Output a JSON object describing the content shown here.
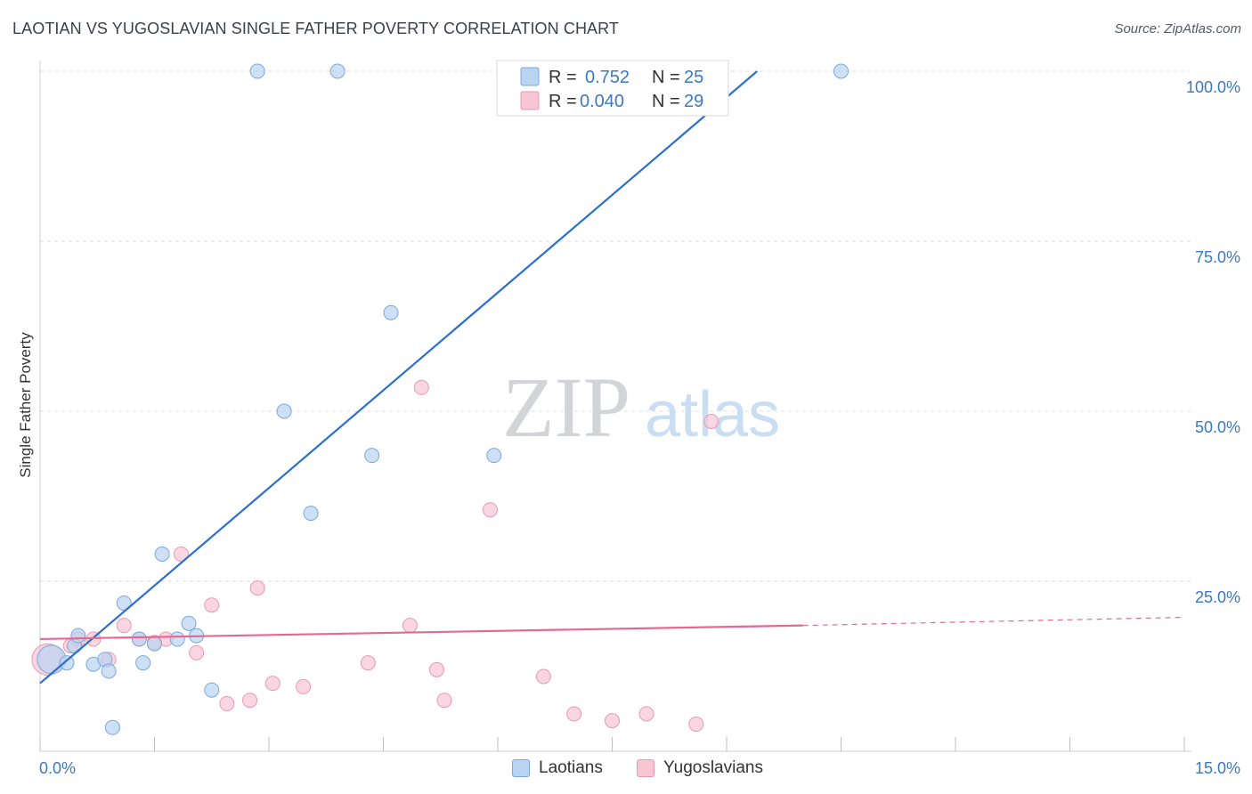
{
  "title": "LAOTIAN VS YUGOSLAVIAN SINGLE FATHER POVERTY CORRELATION CHART",
  "source": "Source: ZipAtlas.com",
  "watermark": {
    "zip": "ZIP",
    "atlas": "atlas"
  },
  "colors": {
    "blue_fill": "#b9d3f2",
    "blue_stroke": "#7aa8dc",
    "blue_line": "#2c6fce",
    "pink_fill": "#f8c5d5",
    "pink_stroke": "#e998b2",
    "pink_line": "#e3698f",
    "axis_text": "#3b78c4",
    "grid": "#dddddd"
  },
  "legend": {
    "series": [
      {
        "r_label": "R =",
        "r_value": "0.752",
        "n_label": "N =",
        "n_value": "25"
      },
      {
        "r_label": "R =",
        "r_value": "0.040",
        "n_label": "N =",
        "n_value": "29"
      }
    ]
  },
  "bottom_legend": {
    "laotians": "Laotians",
    "yugoslavians": "Yugoslavians"
  },
  "chart_data": {
    "type": "scatter",
    "title": "LAOTIAN VS YUGOSLAVIAN SINGLE FATHER POVERTY CORRELATION CHART",
    "xlabel": "",
    "ylabel": "Single Father Poverty",
    "xlim": [
      0,
      15
    ],
    "ylim": [
      0,
      100
    ],
    "x_tick_labels": [
      {
        "value": 0,
        "label": "0.0%"
      },
      {
        "value": 15,
        "label": "15.0%"
      }
    ],
    "y_tick_labels": [
      {
        "value": 100,
        "label": "100.0%"
      },
      {
        "value": 75,
        "label": "75.0%"
      },
      {
        "value": 50,
        "label": "50.0%"
      },
      {
        "value": 25,
        "label": "25.0%"
      }
    ],
    "series": [
      {
        "name": "Laotians",
        "color": "#b9d3f2",
        "points": [
          [
            0.15,
            13.5,
            20
          ],
          [
            0.35,
            13.0,
            10
          ],
          [
            0.45,
            15.5,
            10
          ],
          [
            0.5,
            17.0,
            10
          ],
          [
            0.7,
            12.8,
            10
          ],
          [
            0.85,
            13.5,
            10
          ],
          [
            0.9,
            11.8,
            10
          ],
          [
            0.95,
            3.5,
            10
          ],
          [
            1.1,
            21.8,
            10
          ],
          [
            1.3,
            16.5,
            10
          ],
          [
            1.35,
            13.0,
            10
          ],
          [
            1.5,
            15.8,
            10
          ],
          [
            1.6,
            29.0,
            10
          ],
          [
            1.8,
            16.5,
            10
          ],
          [
            1.95,
            18.8,
            10
          ],
          [
            2.05,
            17.0,
            10
          ],
          [
            2.25,
            9.0,
            10
          ],
          [
            2.85,
            100.0,
            10
          ],
          [
            3.2,
            50.0,
            10
          ],
          [
            3.55,
            35.0,
            10
          ],
          [
            3.9,
            100.0,
            10
          ],
          [
            4.35,
            43.5,
            10
          ],
          [
            4.6,
            64.5,
            10
          ],
          [
            5.95,
            43.5,
            10
          ],
          [
            10.5,
            100.0,
            10
          ]
        ]
      },
      {
        "name": "Yugoslavians",
        "color": "#f8c5d5",
        "points": [
          [
            0.1,
            13.5,
            22
          ],
          [
            0.4,
            15.5,
            10
          ],
          [
            0.5,
            16.5,
            10
          ],
          [
            0.7,
            16.5,
            10
          ],
          [
            0.9,
            13.5,
            10
          ],
          [
            1.1,
            18.5,
            10
          ],
          [
            1.3,
            16.5,
            10
          ],
          [
            1.5,
            16.0,
            10
          ],
          [
            1.65,
            16.5,
            10
          ],
          [
            1.85,
            29.0,
            10
          ],
          [
            2.05,
            14.5,
            10
          ],
          [
            2.25,
            21.5,
            10
          ],
          [
            2.45,
            7.0,
            10
          ],
          [
            2.75,
            7.5,
            10
          ],
          [
            2.85,
            24.0,
            10
          ],
          [
            3.05,
            10.0,
            10
          ],
          [
            3.45,
            9.5,
            10
          ],
          [
            4.3,
            13.0,
            10
          ],
          [
            4.85,
            18.5,
            10
          ],
          [
            5.0,
            53.5,
            10
          ],
          [
            5.2,
            12.0,
            10
          ],
          [
            5.3,
            7.5,
            10
          ],
          [
            5.9,
            35.5,
            10
          ],
          [
            6.6,
            11.0,
            10
          ],
          [
            7.0,
            5.5,
            10
          ],
          [
            7.5,
            4.5,
            10
          ],
          [
            7.95,
            5.5,
            10
          ],
          [
            8.6,
            4.0,
            10
          ],
          [
            8.8,
            48.5,
            10
          ]
        ]
      }
    ],
    "trendlines": [
      {
        "series": "Laotians",
        "from": [
          0,
          10.0
        ],
        "to": [
          9.4,
          100.0
        ],
        "style": "solid"
      },
      {
        "series": "Yugoslavians",
        "from": [
          0,
          16.5
        ],
        "to": [
          10.0,
          18.5
        ],
        "style": "solid"
      },
      {
        "series": "Yugoslavians",
        "from": [
          10.0,
          18.5
        ],
        "to": [
          15.0,
          19.7
        ],
        "style": "dashed"
      }
    ]
  }
}
